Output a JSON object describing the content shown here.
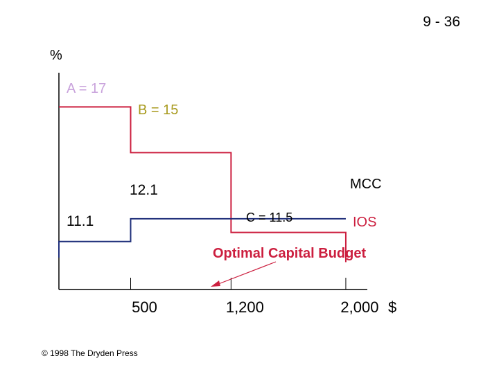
{
  "slide_number": "9 - 36",
  "copyright": "© 1998 The Dryden Press",
  "colors": {
    "ios": "#cc1f3f",
    "mcc": "#1f2f7a",
    "axis": "#000000",
    "label_a": "#c9a3dc",
    "label_b": "#a89a1e",
    "annotation": "#cc1f3f",
    "text": "#000000"
  },
  "chart_data": {
    "type": "line",
    "ylabel": "%",
    "x_unit": "$",
    "x_ticks": [
      {
        "value": 500,
        "label": "500"
      },
      {
        "value": 1200,
        "label": "1,200"
      },
      {
        "value": 2000,
        "label": "2,000"
      }
    ],
    "xlim": [
      0,
      2150
    ],
    "ylim": [
      9,
      18.5
    ],
    "series": [
      {
        "name": "IOS",
        "points": [
          [
            0,
            17
          ],
          [
            500,
            17
          ],
          [
            500,
            15
          ],
          [
            1200,
            15
          ],
          [
            1200,
            11.5
          ],
          [
            2000,
            11.5
          ],
          [
            2000,
            10.2
          ]
        ]
      },
      {
        "name": "MCC",
        "points": [
          [
            0,
            10.4
          ],
          [
            0,
            11.1
          ],
          [
            500,
            11.1
          ],
          [
            500,
            12.1
          ],
          [
            2000,
            12.1
          ]
        ]
      }
    ],
    "annotations": {
      "a": "A = 17",
      "b": "B = 15",
      "c": "C = 11.5",
      "mcc_low": "11.1",
      "mcc_high": "12.1",
      "mcc_name": "MCC",
      "ios_name": "IOS",
      "optimal": "Optimal Capital Budget"
    }
  }
}
